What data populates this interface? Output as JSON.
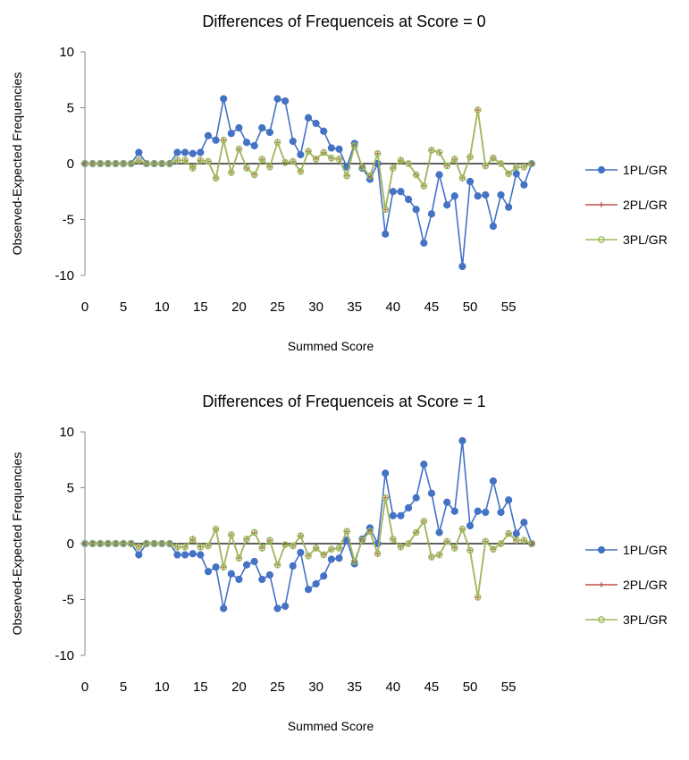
{
  "chart_data": [
    {
      "type": "line",
      "title": "Differences of Frequenceis at Score = 0",
      "xlabel": "Summed Score",
      "ylabel": "Observed-Expected Frequencies",
      "xlim": [
        0,
        58
      ],
      "ylim": [
        -10,
        10
      ],
      "x_ticks": [
        0,
        5,
        10,
        15,
        20,
        25,
        30,
        35,
        40,
        45,
        50,
        55
      ],
      "y_ticks": [
        10,
        5,
        0,
        -5,
        -10
      ],
      "legend_position": "right",
      "x": [
        0,
        1,
        2,
        3,
        4,
        5,
        6,
        7,
        8,
        9,
        10,
        11,
        12,
        13,
        14,
        15,
        16,
        17,
        18,
        19,
        20,
        21,
        22,
        23,
        24,
        25,
        26,
        27,
        28,
        29,
        30,
        31,
        32,
        33,
        34,
        35,
        36,
        37,
        38,
        39,
        40,
        41,
        42,
        43,
        44,
        45,
        46,
        47,
        48,
        49,
        50,
        51,
        52,
        53,
        54,
        55,
        56,
        57,
        58
      ],
      "series": [
        {
          "name": "1PL/GR",
          "color": "#4472C4",
          "marker": "circle",
          "values": [
            0,
            0,
            0,
            0,
            0,
            0,
            0,
            1,
            0,
            0,
            0,
            0,
            1,
            1,
            0.9,
            1,
            2.5,
            2.1,
            5.8,
            2.7,
            3.2,
            1.9,
            1.6,
            3.2,
            2.8,
            5.8,
            5.6,
            2,
            0.8,
            4.1,
            3.6,
            2.9,
            1.4,
            1.3,
            -0.3,
            1.8,
            -0.4,
            -1.4,
            0,
            -6.3,
            -2.5,
            -2.5,
            -3.2,
            -4.1,
            -7.1,
            -4.5,
            -1,
            -3.7,
            -2.9,
            -9.2,
            -1.6,
            -2.9,
            -2.8,
            -5.6,
            -2.8,
            -3.9,
            -0.9,
            -1.9,
            0
          ]
        },
        {
          "name": "2PL/GR",
          "color": "#C0504D",
          "marker": "plus",
          "values": [
            0,
            0,
            0,
            0,
            0,
            0,
            0,
            0.3,
            0,
            0,
            0,
            0,
            0.3,
            0.3,
            -0.4,
            0.3,
            0.2,
            -1.3,
            2.1,
            -0.8,
            1.3,
            -0.4,
            -1,
            0.4,
            -0.3,
            1.9,
            0.1,
            0.2,
            -0.7,
            1.1,
            0.4,
            1,
            0.5,
            0.4,
            -1.1,
            1.6,
            -0.3,
            -1.1,
            0.9,
            -4.1,
            -0.4,
            0.3,
            0,
            -1,
            -2,
            1.2,
            1,
            -0.2,
            0.4,
            -1.3,
            0.6,
            4.8,
            -0.2,
            0.5,
            0,
            -0.9,
            -0.3,
            -0.3,
            0
          ]
        },
        {
          "name": "3PL/GR",
          "color": "#9BBB59",
          "marker": "circle-open",
          "values": [
            0,
            0,
            0,
            0,
            0,
            0,
            0,
            0.3,
            0,
            0,
            0,
            0,
            0.3,
            0.3,
            -0.4,
            0.3,
            0.2,
            -1.3,
            2.1,
            -0.8,
            1.3,
            -0.4,
            -1,
            0.4,
            -0.3,
            1.9,
            0.1,
            0.2,
            -0.7,
            1.1,
            0.4,
            1,
            0.5,
            0.4,
            -1.1,
            1.6,
            -0.3,
            -1.1,
            0.9,
            -4.1,
            -0.4,
            0.3,
            0,
            -1,
            -2,
            1.2,
            1,
            -0.2,
            0.4,
            -1.3,
            0.6,
            4.8,
            -0.2,
            0.5,
            0,
            -0.9,
            -0.3,
            -0.3,
            0
          ]
        }
      ]
    },
    {
      "type": "line",
      "title": "Differences of Frequenceis at Score = 1",
      "xlabel": "Summed Score",
      "ylabel": "Observed-Expected Frequencies",
      "xlim": [
        0,
        58
      ],
      "ylim": [
        -10,
        10
      ],
      "x_ticks": [
        0,
        5,
        10,
        15,
        20,
        25,
        30,
        35,
        40,
        45,
        50,
        55
      ],
      "y_ticks": [
        10,
        5,
        0,
        -5,
        -10
      ],
      "legend_position": "right",
      "x": [
        0,
        1,
        2,
        3,
        4,
        5,
        6,
        7,
        8,
        9,
        10,
        11,
        12,
        13,
        14,
        15,
        16,
        17,
        18,
        19,
        20,
        21,
        22,
        23,
        24,
        25,
        26,
        27,
        28,
        29,
        30,
        31,
        32,
        33,
        34,
        35,
        36,
        37,
        38,
        39,
        40,
        41,
        42,
        43,
        44,
        45,
        46,
        47,
        48,
        49,
        50,
        51,
        52,
        53,
        54,
        55,
        56,
        57,
        58
      ],
      "series": [
        {
          "name": "1PL/GR",
          "color": "#4472C4",
          "marker": "circle",
          "values": [
            0,
            0,
            0,
            0,
            0,
            0,
            0,
            -1,
            0,
            0,
            0,
            0,
            -1,
            -1,
            -0.9,
            -1,
            -2.5,
            -2.1,
            -5.8,
            -2.7,
            -3.2,
            -1.9,
            -1.6,
            -3.2,
            -2.8,
            -5.8,
            -5.6,
            -2,
            -0.8,
            -4.1,
            -3.6,
            -2.9,
            -1.4,
            -1.3,
            0.3,
            -1.8,
            0.4,
            1.4,
            0,
            6.3,
            2.5,
            2.5,
            3.2,
            4.1,
            7.1,
            4.5,
            1,
            3.7,
            2.9,
            9.2,
            1.6,
            2.9,
            2.8,
            5.6,
            2.8,
            3.9,
            0.9,
            1.9,
            0
          ]
        },
        {
          "name": "2PL/GR",
          "color": "#C0504D",
          "marker": "plus",
          "values": [
            0,
            0,
            0,
            0,
            0,
            0,
            0,
            -0.3,
            0,
            0,
            0,
            0,
            -0.3,
            -0.3,
            0.4,
            -0.3,
            -0.2,
            1.3,
            -2.1,
            0.8,
            -1.3,
            0.4,
            1,
            -0.4,
            0.3,
            -1.9,
            -0.1,
            -0.2,
            0.7,
            -1.1,
            -0.4,
            -1,
            -0.5,
            -0.4,
            1.1,
            -1.6,
            0.3,
            1.1,
            -0.9,
            4.1,
            0.4,
            -0.3,
            0,
            1,
            2,
            -1.2,
            -1,
            0.2,
            -0.4,
            1.3,
            -0.6,
            -4.8,
            0.2,
            -0.5,
            0,
            0.9,
            0.3,
            0.3,
            0
          ]
        },
        {
          "name": "3PL/GR",
          "color": "#9BBB59",
          "marker": "circle-open",
          "values": [
            0,
            0,
            0,
            0,
            0,
            0,
            0,
            -0.3,
            0,
            0,
            0,
            0,
            -0.3,
            -0.3,
            0.4,
            -0.3,
            -0.2,
            1.3,
            -2.1,
            0.8,
            -1.3,
            0.4,
            1,
            -0.4,
            0.3,
            -1.9,
            -0.1,
            -0.2,
            0.7,
            -1.1,
            -0.4,
            -1,
            -0.5,
            -0.4,
            1.1,
            -1.6,
            0.3,
            1.1,
            -0.9,
            4.1,
            0.4,
            -0.3,
            0,
            1,
            2,
            -1.2,
            -1,
            0.2,
            -0.4,
            1.3,
            -0.6,
            -4.8,
            0.2,
            -0.5,
            0,
            0.9,
            0.3,
            0.3,
            0
          ]
        }
      ]
    }
  ]
}
